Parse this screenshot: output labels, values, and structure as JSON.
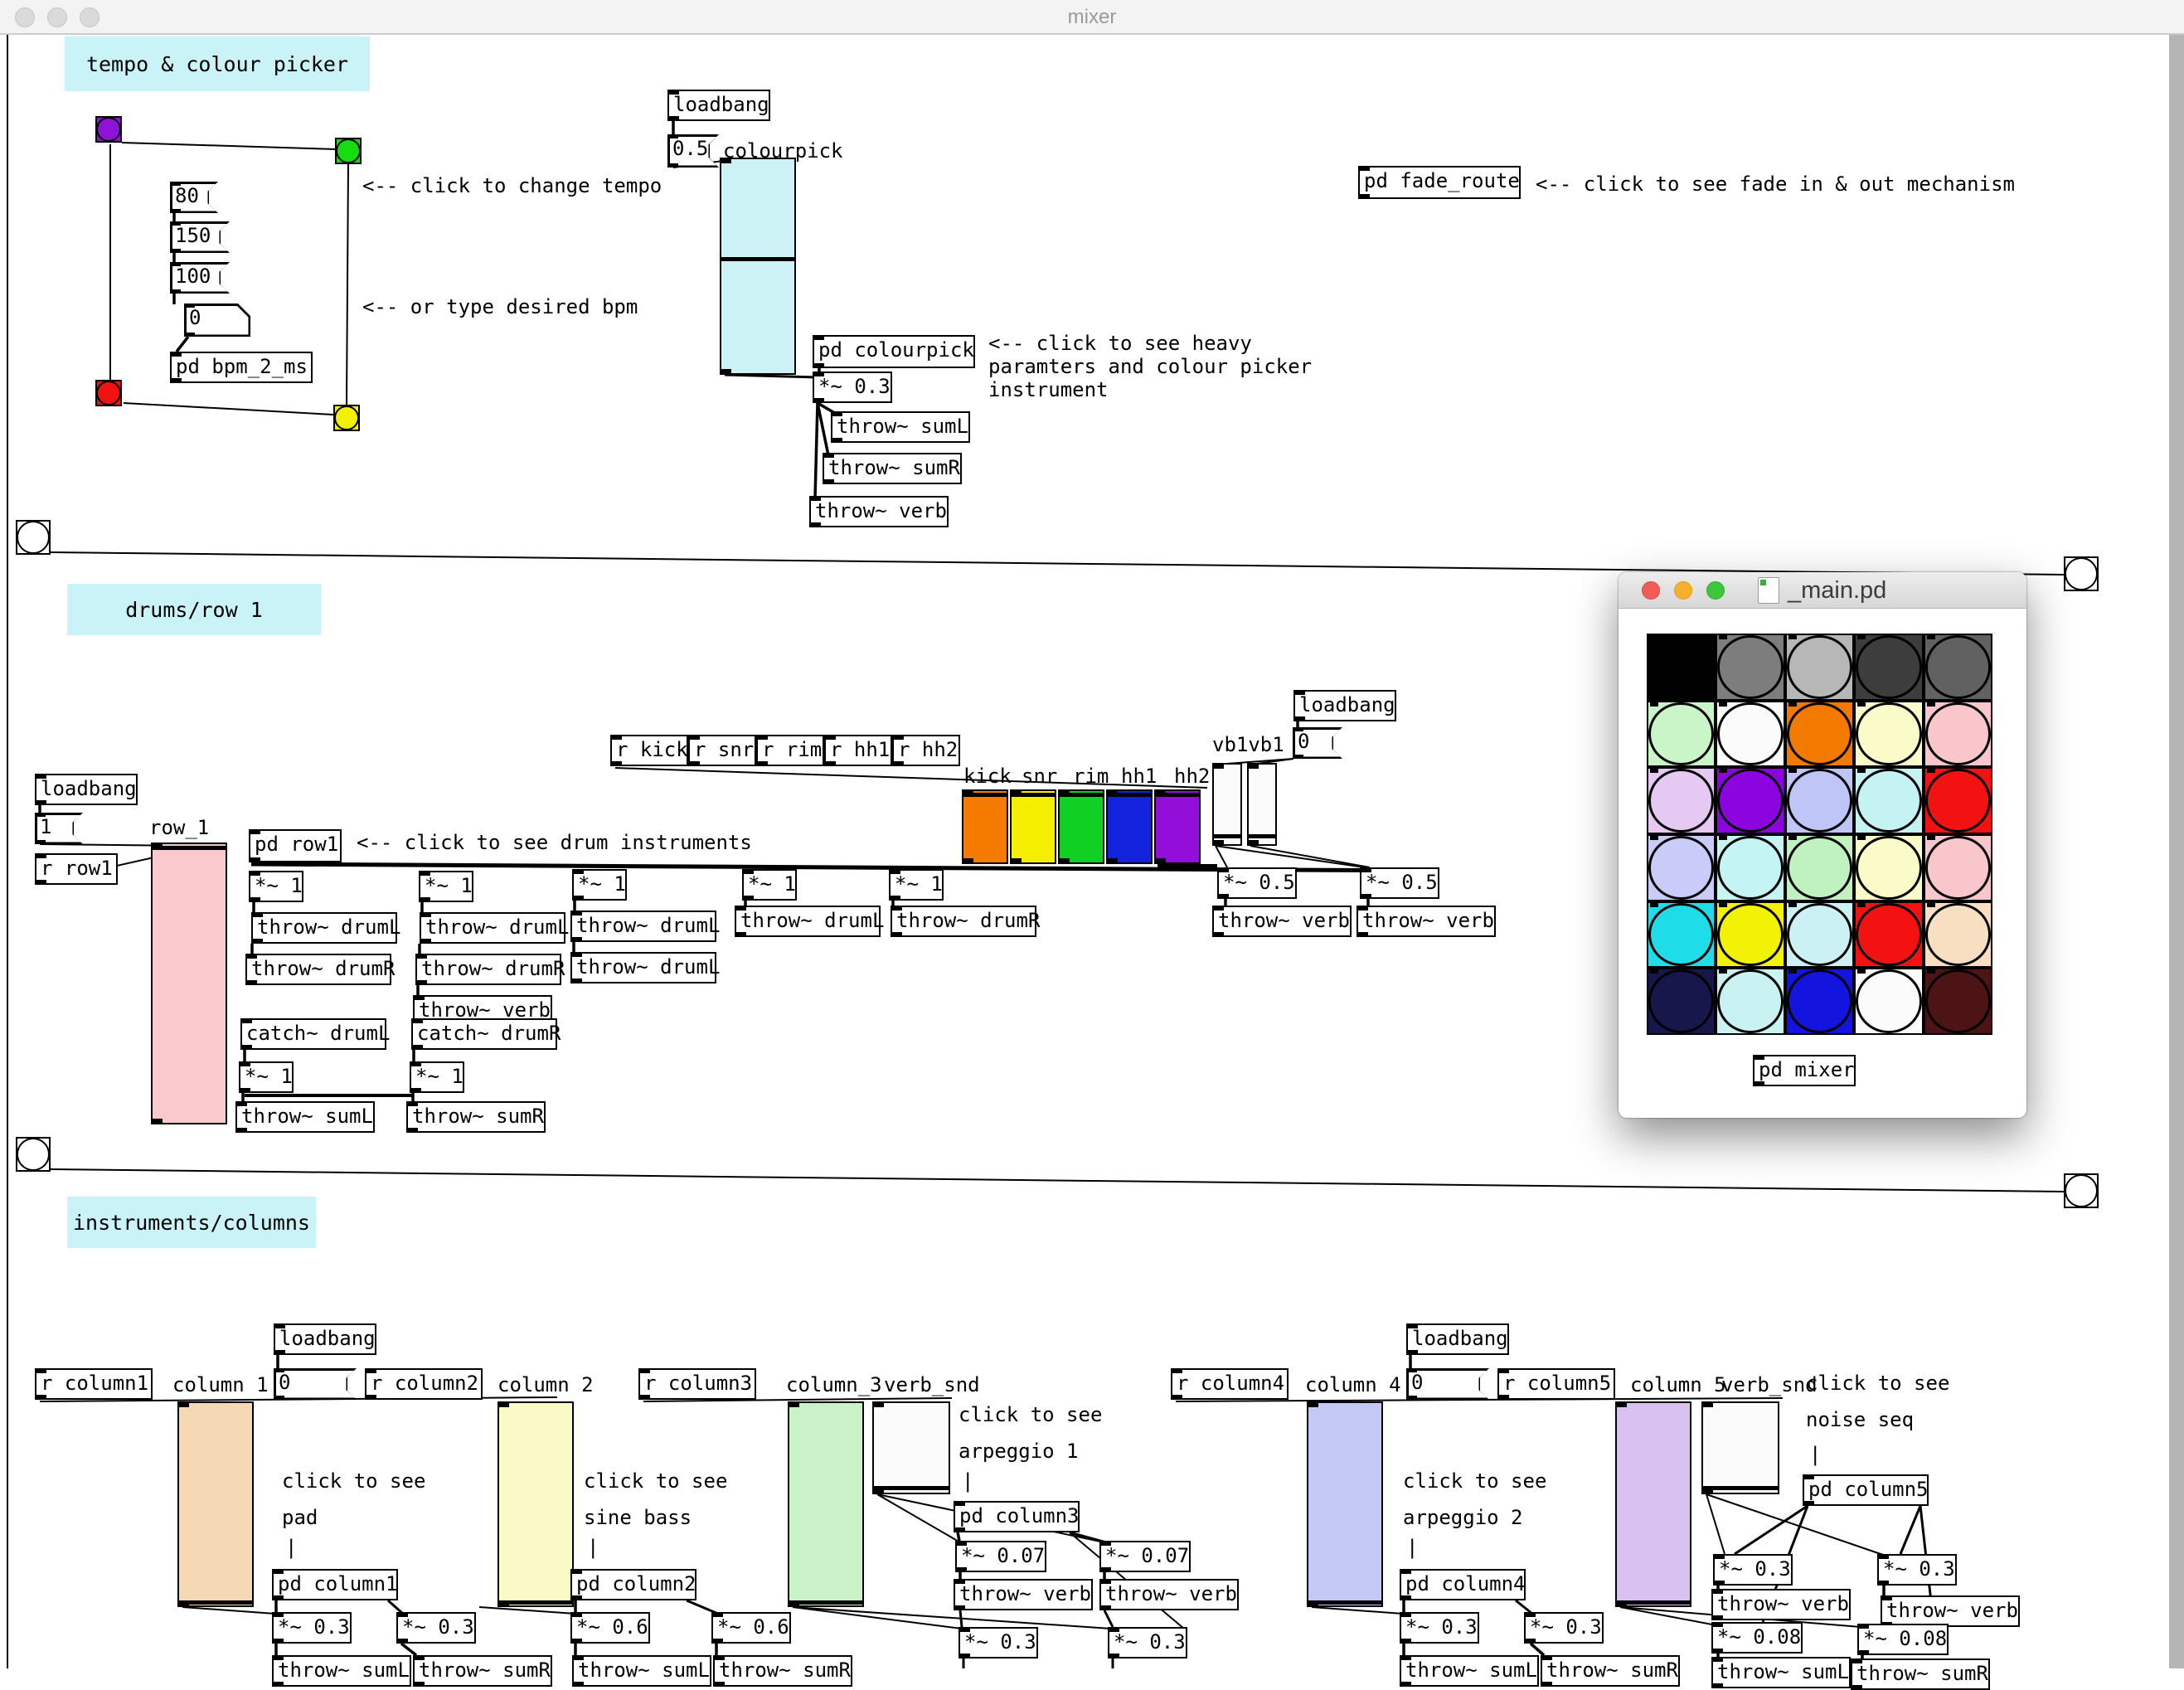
{
  "window": {
    "title": "mixer"
  },
  "sections": {
    "tempo_label": "tempo & colour picker",
    "drums_label": "drums/row 1",
    "instruments_label": "instruments/columns"
  },
  "tempo": {
    "msgs": [
      "80",
      "150",
      "100"
    ],
    "number": "0",
    "pd": "pd bpm_2_ms",
    "comment_click": "<-- click to change tempo",
    "comment_type": "<-- or type desired bpm",
    "bang_colors": {
      "tl": "#8f12d9",
      "tr": "#17dc12",
      "bl": "#f21212",
      "br": "#f2f200"
    }
  },
  "colourpick": {
    "loadbang": "loadbang",
    "msg": "0.5",
    "slider_label": "colourpick",
    "slider_color": "#cdf2f5",
    "pd": "pd colourpick",
    "gain": "*~ 0.3",
    "throws": [
      "throw~ sumL",
      "throw~ sumR",
      "throw~ verb"
    ],
    "comment": [
      "<-- click to see heavy",
      "paramters and colour picker",
      "instrument"
    ]
  },
  "fade": {
    "pd": "pd fade_route",
    "comment": "<-- click to see fade in & out mechanism"
  },
  "drums": {
    "loadbang": "loadbang",
    "msg": "1",
    "recv": "r row1",
    "slider_label": "row_1",
    "slider_color": "#f9c9ce",
    "pd": "pd row1",
    "comment": "<-- click to see drum instruments",
    "gain": "*~ 1",
    "stacks": [
      [
        "throw~ drumL",
        "throw~ drumR"
      ],
      [
        "throw~ drumL",
        "throw~ drumR",
        "throw~ verb"
      ],
      [
        "throw~ drumL",
        "throw~ drumL"
      ],
      [
        "throw~ drumL"
      ],
      [
        "throw~ drumR"
      ]
    ],
    "catchL": "catch~ drumL",
    "catchR": "catch~ drumR",
    "sumL": "throw~ sumL",
    "sumR": "throw~ sumR",
    "recvs": [
      "r kick",
      "r snr",
      "r rim",
      "r hh1",
      "r hh2"
    ],
    "slider_labels": [
      "kick",
      "snr",
      "rim",
      "hh1",
      "hh2"
    ],
    "slider_colors": [
      "#f57a00",
      "#f4ef00",
      "#0fd023",
      "#1322dc",
      "#930fd9"
    ],
    "vb_label": "vb1vb1",
    "loadbang2": "loadbang",
    "msg2": "0",
    "vb_gain": "*~ 0.5",
    "vb_throw": "throw~ verb"
  },
  "main_window": {
    "title": "_main.pd",
    "pd_mixer": "pd mixer",
    "grid": {
      "rows": 6,
      "cols": 5,
      "cells": [
        [
          "#000000",
          "#7d7d7d",
          "#b7b7b7",
          "#3d3d3d",
          "#616161"
        ],
        [
          "#c9f5c9",
          "#fbfbfb",
          "#f27a00",
          "#fbfbc9",
          "#f9c6cc"
        ],
        [
          "#e5c9f2",
          "#8c04e0",
          "#bfc5f7",
          "#c5f2f2",
          "#f21212"
        ],
        [
          "#c9ccf9",
          "#c5f4f4",
          "#bff2bf",
          "#fbfbc9",
          "#f9c6cc"
        ],
        [
          "#1fdde8",
          "#f2f204",
          "#cbf1f4",
          "#f21212",
          "#f9dfc2"
        ],
        [
          "#17174c",
          "#c9f2f2",
          "#1414df",
          "#fbfbfb",
          "#4c1414"
        ]
      ]
    }
  },
  "columns": {
    "r1": "r column1",
    "label1": "column 1",
    "loadbang": "loadbang",
    "msg": "0",
    "r2": "r column2",
    "label2": "column 2",
    "r3": "r column3",
    "label3": "column_3",
    "verb_label": "verb_snd",
    "r4": "r column4",
    "label4": "column 4",
    "loadbang2": "loadbang",
    "msg2": "0",
    "r5": "r column5",
    "label5": "column 5",
    "verb_label2": "verb_snd",
    "verb_color": "#fbfbfb",
    "c1": {
      "comment": [
        "click to see",
        "pad",
        "|"
      ],
      "pd": "pd column1",
      "gains": [
        "*~ 0.3",
        "*~ 0.3"
      ],
      "sumL": "throw~ sumL",
      "sumR": "throw~ sumR",
      "color": "#f5d9b5"
    },
    "c2": {
      "comment": [
        "click to see",
        "sine bass",
        "|"
      ],
      "pd": "pd column2",
      "gains": [
        "*~ 0.6",
        "*~ 0.6"
      ],
      "sumL": "throw~ sumL",
      "sumR": "throw~ sumR",
      "color": "#fafac6"
    },
    "c3": {
      "comment": [
        "click to see",
        "arpeggio 1",
        "|"
      ],
      "pd": "pd column3",
      "gains": [
        "*~ 0.07",
        "*~ 0.07"
      ],
      "verbs": [
        "throw~ verb",
        "throw~ verb"
      ],
      "gains2": [
        "*~ 0.3",
        "*~ 0.3"
      ],
      "color": "#c9f2c9"
    },
    "c4": {
      "comment": [
        "click to see",
        "arpeggio 2",
        "|"
      ],
      "pd": "pd column4",
      "gains": [
        "*~ 0.3",
        "*~ 0.3"
      ],
      "sumL": "throw~ sumL",
      "sumR": "throw~ sumR",
      "color": "#c3c9f4"
    },
    "c5": {
      "comment": [
        "click to see",
        "noise seq",
        "|"
      ],
      "pd": "pd column5",
      "gains": [
        "*~ 0.3",
        "*~ 0.3"
      ],
      "verbs": [
        "throw~ verb",
        "throw~ verb"
      ],
      "gains2": [
        "*~ 0.08",
        "*~ 0.08"
      ],
      "sumL": "throw~ sumL",
      "sumR": "throw~ sumR",
      "color": "#d9c2f2"
    }
  }
}
